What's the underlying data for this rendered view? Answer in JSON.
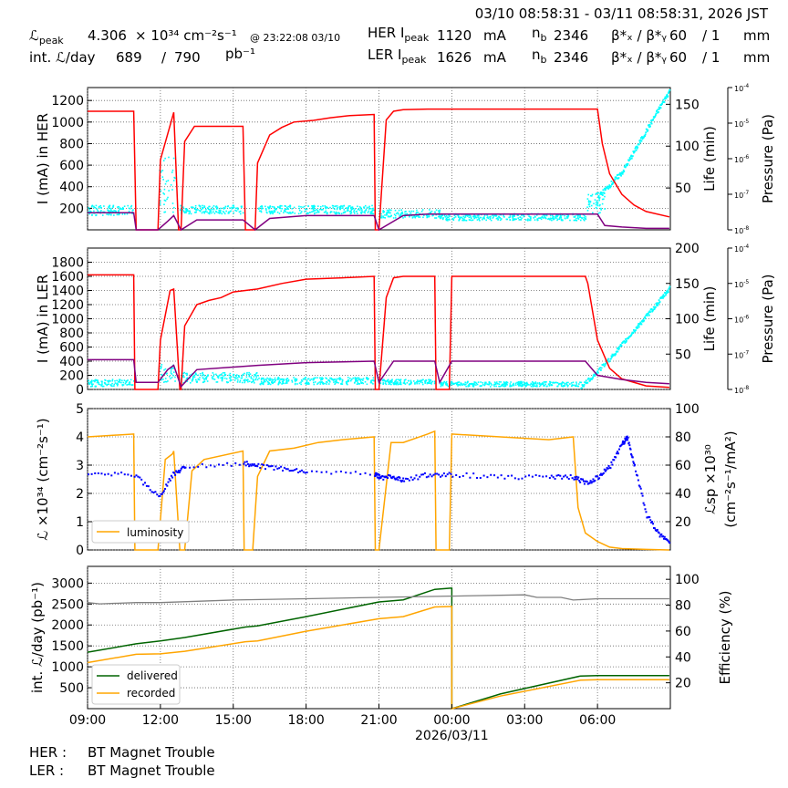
{
  "header": {
    "timerange": "03/10 08:58:31 - 03/11 08:58:31, 2026 JST",
    "lpeak_label": "ℒ",
    "lpeak_sub": "peak",
    "lpeak_value": "4.306",
    "lpeak_unit": "× 10³⁴ cm⁻²s⁻¹",
    "lpeak_time": "@ 23:22:08 03/10",
    "intl_label": "int. ℒ/day",
    "intl_value": "689",
    "intl_sep": "/",
    "intl_total": "790",
    "intl_unit": "pb⁻¹",
    "her_label": "HER I",
    "her_sub": "peak",
    "her_value": "1120",
    "her_unit": "mA",
    "ler_label": "LER I",
    "ler_sub": "peak",
    "ler_value": "1626",
    "ler_unit": "mA",
    "nb_label": "n",
    "nb_sub": "b",
    "nb_her": "2346",
    "nb_ler": "2346",
    "beta_label": "β*ₓ / β*ᵧ",
    "beta_her_x": "60",
    "beta_her_y": "/ 1",
    "beta_ler_x": "60",
    "beta_ler_y": "/ 1",
    "beta_unit": "mm"
  },
  "footer": {
    "her_label": "HER :",
    "her_status": "BT Magnet Trouble",
    "ler_label": "LER :",
    "ler_status": "BT Magnet Trouble"
  },
  "colors": {
    "current": "#ff0000",
    "life": "#00ffff",
    "pressure": "#800080",
    "luminosity": "#ffa500",
    "specific": "#0000ff",
    "delivered": "#006400",
    "recorded": "#ffa500",
    "efficiency": "#808080"
  },
  "chart_data": [
    {
      "type": "line",
      "id": "her",
      "ylabel": "I (mA) in HER",
      "ylim": [
        0,
        1320
      ],
      "yticks": [
        200,
        400,
        600,
        800,
        1000,
        1200
      ],
      "y2label": "Life (min)",
      "y2ticks": [
        50,
        100,
        150
      ],
      "y3label": "Pressure (Pa)",
      "grid": true,
      "series": [
        {
          "role": "current",
          "x": [
            9.0,
            10.9,
            11.0,
            11.9,
            12.0,
            12.5,
            12.55,
            12.75,
            12.85,
            13.0,
            13.4,
            15.4,
            15.5,
            15.9,
            16.0,
            16.5,
            17.0,
            17.5,
            18.3,
            19.0,
            19.8,
            20.8,
            20.85,
            20.9,
            21.0,
            21.3,
            21.6,
            22.0,
            23.0,
            0.0,
            1.0,
            2.0,
            3.0,
            4.0,
            5.5,
            6.0,
            6.2,
            6.5,
            7.0,
            7.5,
            8.0,
            8.96
          ],
          "y": [
            1100,
            1100,
            0,
            0,
            650,
            1050,
            1090,
            0,
            0,
            820,
            960,
            960,
            0,
            0,
            620,
            880,
            950,
            1000,
            1015,
            1040,
            1060,
            1070,
            0,
            0,
            0,
            1020,
            1100,
            1115,
            1120,
            1120,
            1120,
            1120,
            1120,
            1120,
            1120,
            1120,
            800,
            520,
            330,
            230,
            170,
            120
          ]
        },
        {
          "role": "pressure",
          "x": [
            9.0,
            10.9,
            11.0,
            11.9,
            12.3,
            12.55,
            12.85,
            13.5,
            15.4,
            15.9,
            16.5,
            18.0,
            20.8,
            21.0,
            22.0,
            23.0,
            0.0,
            3.0,
            5.5,
            6.0,
            6.3,
            7.0,
            8.0,
            8.96
          ],
          "y_rel": [
            0.12,
            0.12,
            0.0,
            0.0,
            0.06,
            0.1,
            0.0,
            0.07,
            0.07,
            0.0,
            0.08,
            0.1,
            0.1,
            0.0,
            0.1,
            0.11,
            0.11,
            0.11,
            0.11,
            0.11,
            0.03,
            0.02,
            0.01,
            0.01
          ]
        }
      ],
      "scatter": {
        "role": "life",
        "y2_min": 0,
        "y2_max": 170,
        "x_ranges": [
          [
            9.0,
            10.9,
            18,
            30
          ],
          [
            11.9,
            12.6,
            20,
            90
          ],
          [
            12.8,
            15.4,
            20,
            30
          ],
          [
            16.0,
            20.8,
            20,
            30
          ],
          [
            21.0,
            23.5,
            15,
            25
          ],
          [
            23.5,
            5.5,
            12,
            20
          ],
          [
            5.5,
            6.3,
            20,
            45
          ]
        ],
        "tail": {
          "x": [
            6.0,
            6.5,
            7.0,
            7.5,
            8.0,
            8.5,
            8.96
          ],
          "y2": [
            40,
            55,
            70,
            95,
            120,
            145,
            168
          ]
        }
      }
    },
    {
      "type": "line",
      "id": "ler",
      "ylabel": "I (mA) in LER",
      "ylim": [
        0,
        2000
      ],
      "yticks": [
        0,
        200,
        400,
        600,
        800,
        1000,
        1200,
        1400,
        1600,
        1800
      ],
      "y2label": "Life (min)",
      "y2ticks": [
        50,
        100,
        150,
        200
      ],
      "y3label": "Pressure (Pa)",
      "grid": true,
      "series": [
        {
          "role": "current",
          "x": [
            9.0,
            10.9,
            10.95,
            11.9,
            12.0,
            12.4,
            12.55,
            12.8,
            12.85,
            13.0,
            13.5,
            14.0,
            14.5,
            15.0,
            16.0,
            17.0,
            18.0,
            19.5,
            20.8,
            20.85,
            21.0,
            21.3,
            21.6,
            22.0,
            22.5,
            23.3,
            23.35,
            23.5,
            23.9,
            0.0,
            1.0,
            3.0,
            4.5,
            5.5,
            5.6,
            6.0,
            6.5,
            7.0,
            8.0,
            8.96
          ],
          "y": [
            1620,
            1620,
            0,
            0,
            700,
            1400,
            1420,
            0,
            0,
            900,
            1200,
            1260,
            1300,
            1380,
            1420,
            1500,
            1560,
            1580,
            1600,
            0,
            0,
            1300,
            1580,
            1600,
            1600,
            1600,
            0,
            0,
            0,
            1600,
            1600,
            1600,
            1600,
            1600,
            1500,
            700,
            300,
            150,
            50,
            30
          ]
        },
        {
          "role": "pressure",
          "x": [
            9.0,
            10.9,
            11.0,
            11.9,
            12.3,
            12.55,
            12.85,
            13.5,
            16.0,
            18.0,
            20.8,
            21.0,
            21.6,
            23.3,
            23.5,
            0.0,
            3.0,
            5.5,
            6.0,
            7.0,
            8.0,
            8.96
          ],
          "y_rel": [
            0.21,
            0.21,
            0.05,
            0.05,
            0.14,
            0.17,
            0.02,
            0.14,
            0.17,
            0.19,
            0.2,
            0.05,
            0.2,
            0.2,
            0.05,
            0.2,
            0.2,
            0.2,
            0.1,
            0.07,
            0.05,
            0.04
          ]
        }
      ],
      "scatter": {
        "role": "life",
        "y2_min": 0,
        "y2_max": 200,
        "x_ranges": [
          [
            9.0,
            10.9,
            5,
            15
          ],
          [
            11.9,
            12.6,
            10,
            40
          ],
          [
            12.8,
            16.0,
            10,
            25
          ],
          [
            16.0,
            20.8,
            8,
            18
          ],
          [
            21.0,
            23.3,
            8,
            15
          ],
          [
            23.5,
            5.3,
            5,
            12
          ]
        ],
        "tail": {
          "x": [
            5.3,
            5.8,
            6.5,
            7.0,
            7.5,
            8.0,
            8.5,
            8.96
          ],
          "y2": [
            5,
            20,
            45,
            65,
            85,
            105,
            125,
            145
          ]
        }
      }
    },
    {
      "type": "line",
      "id": "lumi",
      "ylabel": "ℒ ×10³⁴ (cm⁻²s⁻¹)",
      "ylim": [
        0,
        5
      ],
      "yticks": [
        0,
        1,
        2,
        3,
        4,
        5
      ],
      "y2label": "ℒsp ×10³⁰ (cm⁻²s⁻¹/mA²)",
      "y2lim": [
        0,
        100
      ],
      "y2ticks": [
        20,
        40,
        60,
        80,
        100
      ],
      "legend": "luminosity",
      "legend_position": "lower-left",
      "grid": true,
      "series": [
        {
          "name": "luminosity",
          "role": "luminosity",
          "x": [
            9.0,
            10.9,
            10.95,
            11.9,
            12.2,
            12.5,
            12.55,
            12.8,
            13.0,
            13.3,
            13.8,
            15.4,
            15.45,
            15.8,
            16.0,
            16.5,
            17.5,
            18.5,
            19.5,
            20.8,
            20.85,
            21.0,
            21.5,
            22.0,
            23.0,
            23.3,
            23.35,
            23.6,
            23.9,
            0.0,
            2.0,
            4.0,
            5.0,
            5.2,
            5.5,
            6.0,
            6.5,
            7.0,
            8.0,
            8.96
          ],
          "y": [
            4.0,
            4.1,
            0,
            0,
            3.2,
            3.4,
            3.5,
            0,
            0,
            2.8,
            3.2,
            3.5,
            0,
            0,
            2.6,
            3.5,
            3.6,
            3.8,
            3.9,
            4.0,
            0,
            0,
            3.8,
            3.8,
            4.1,
            4.2,
            0,
            0,
            0,
            4.1,
            4.0,
            3.9,
            4.0,
            1.5,
            0.6,
            0.3,
            0.1,
            0.05,
            0.02,
            0.0
          ]
        },
        {
          "role": "specific",
          "x": [
            9.0,
            10.9,
            11.9,
            12.5,
            13.0,
            15.4,
            16.0,
            17.0,
            18.0,
            20.8,
            21.0,
            21.5,
            22.0,
            23.0,
            0.0,
            2.0,
            4.0,
            5.0,
            5.5,
            6.0,
            6.5,
            7.0,
            7.2,
            7.5,
            8.0,
            8.5,
            8.96
          ],
          "y2": [
            54,
            54,
            38,
            54,
            60,
            62,
            60,
            58,
            56,
            54,
            52,
            52,
            50,
            54,
            54,
            52,
            52,
            52,
            48,
            52,
            60,
            76,
            80,
            60,
            25,
            12,
            5
          ]
        }
      ]
    },
    {
      "type": "line",
      "id": "intlumi",
      "ylabel": "int. ℒ/day (pb⁻¹)",
      "ylim": [
        0,
        3400
      ],
      "yticks": [
        500,
        1000,
        1500,
        2000,
        2500,
        3000
      ],
      "y2label": "Efficiency (%)",
      "y2lim": [
        0,
        110
      ],
      "y2ticks": [
        20,
        40,
        60,
        80,
        100
      ],
      "legend_position": "lower-left",
      "xticks": [
        "09:00",
        "12:00",
        "15:00",
        "18:00",
        "21:00",
        "00:00",
        "03:00",
        "06:00"
      ],
      "xsub": "2026/03/11",
      "grid": true,
      "series": [
        {
          "name": "delivered",
          "role": "delivered",
          "x": [
            9.0,
            11.0,
            12.0,
            13.0,
            15.5,
            16.0,
            18.0,
            21.0,
            22.0,
            23.3,
            23.95,
            0.0,
            0.0,
            2.0,
            5.3,
            6.0,
            8.96
          ],
          "y": [
            1350,
            1550,
            1620,
            1700,
            1950,
            1980,
            2200,
            2550,
            2600,
            2850,
            2880,
            2880,
            0,
            350,
            780,
            790,
            790
          ]
        },
        {
          "name": "recorded",
          "role": "recorded",
          "x": [
            9.0,
            11.0,
            12.0,
            13.0,
            15.5,
            16.0,
            18.0,
            21.0,
            22.0,
            23.3,
            23.95,
            0.0,
            0.0,
            2.0,
            5.3,
            6.0,
            8.96
          ],
          "y": [
            1100,
            1300,
            1310,
            1370,
            1600,
            1620,
            1850,
            2150,
            2200,
            2430,
            2440,
            2440,
            0,
            300,
            680,
            690,
            690
          ]
        },
        {
          "role": "efficiency",
          "x": [
            9.0,
            9.5,
            11.0,
            12.0,
            15.0,
            18.0,
            21.0,
            23.9,
            0.0,
            3.0,
            3.5,
            4.5,
            5.0,
            6.0,
            8.96
          ],
          "y2": [
            82,
            81,
            82,
            82,
            84,
            85,
            86,
            87,
            87,
            88,
            86,
            86,
            84,
            85,
            85
          ]
        }
      ]
    }
  ]
}
